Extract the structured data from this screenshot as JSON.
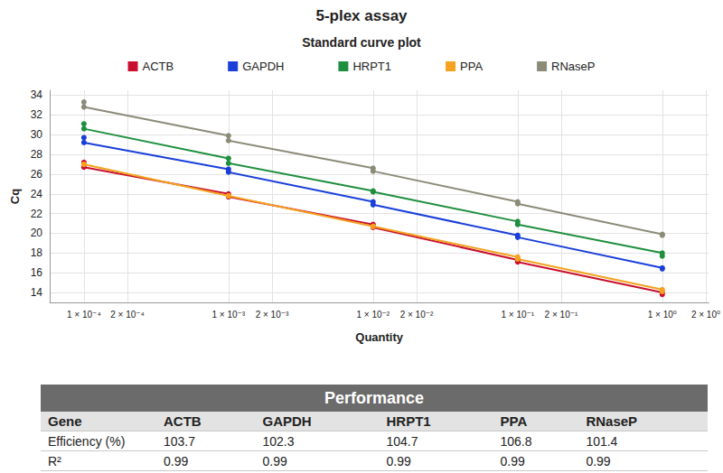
{
  "chart_data": {
    "type": "line",
    "title": "5-plex assay",
    "subtitle": "Standard curve plot",
    "x_label": "Quantity",
    "y_label": "Cq",
    "log": "x",
    "grid": true,
    "legend": "top",
    "marker": "circle",
    "xlim": [
      5.8e-05,
      2.1
    ],
    "xticks": [
      {
        "value": 0.0001,
        "label": "1 × 10⁻⁴"
      },
      {
        "value": 0.0002,
        "label": "2 × 10⁻⁴"
      },
      {
        "value": 0.001,
        "label": "1 × 10⁻³"
      },
      {
        "value": 0.002,
        "label": "2 × 10⁻³"
      },
      {
        "value": 0.01,
        "label": "1 × 10⁻²"
      },
      {
        "value": 0.02,
        "label": "2 × 10⁻²"
      },
      {
        "value": 0.1,
        "label": "1 × 10⁻¹"
      },
      {
        "value": 0.2,
        "label": "2 × 10⁻¹"
      },
      {
        "value": 1,
        "label": "1 × 10⁰"
      },
      {
        "value": 2,
        "label": "2 × 10⁰"
      }
    ],
    "ylim": [
      13,
      34.5
    ],
    "yticks": [
      14,
      16,
      18,
      20,
      22,
      24,
      26,
      28,
      30,
      32,
      34
    ],
    "x": [
      0.0001,
      0.0001,
      0.001,
      0.001,
      0.01,
      0.01,
      0.1,
      0.1,
      1,
      1
    ],
    "series": [
      {
        "name": "ACTB",
        "color": "#c8102e",
        "values": [
          27.2,
          26.7,
          24.0,
          23.7,
          20.9,
          20.6,
          17.3,
          17.1,
          14.0,
          13.8
        ]
      },
      {
        "name": "GAPDH",
        "color": "#1a3fd9",
        "values": [
          29.7,
          29.2,
          26.5,
          26.2,
          23.2,
          22.9,
          19.8,
          19.6,
          16.5,
          16.4
        ]
      },
      {
        "name": "HRPT1",
        "color": "#1e8f3e",
        "values": [
          31.1,
          30.6,
          27.6,
          27.1,
          24.3,
          24.2,
          21.2,
          20.9,
          18.0,
          17.7
        ]
      },
      {
        "name": "PPA",
        "color": "#f4a21f",
        "values": [
          27.0,
          27.0,
          23.8,
          23.8,
          20.7,
          20.7,
          17.6,
          17.4,
          14.3,
          14.1
        ]
      },
      {
        "name": "RNaseP",
        "color": "#8c8b78",
        "values": [
          33.3,
          32.8,
          29.9,
          29.4,
          26.6,
          26.3,
          23.2,
          23.0,
          19.9,
          19.8
        ]
      }
    ]
  },
  "table": {
    "title": "Performance",
    "header": [
      "Gene",
      "ACTB",
      "GAPDH",
      "HRPT1",
      "PPA",
      "RNaseP"
    ],
    "rows": [
      [
        "Efficiency (%)",
        103.7,
        102.3,
        104.7,
        106.8,
        101.4
      ],
      [
        "R²",
        0.99,
        0.99,
        0.99,
        0.99,
        0.99
      ]
    ]
  }
}
